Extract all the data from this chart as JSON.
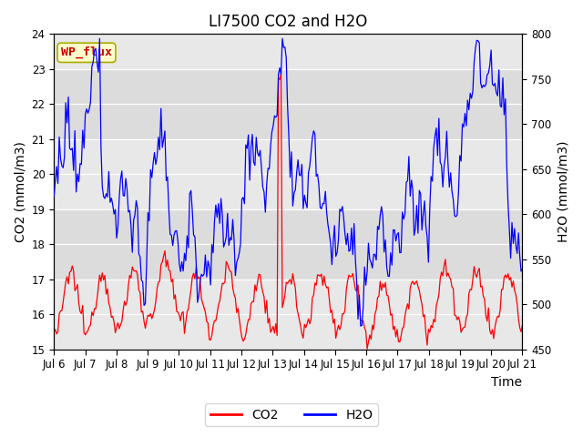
{
  "title": "LI7500 CO2 and H2O",
  "xlabel": "Time",
  "ylabel_left": "CO2 (mmol/m3)",
  "ylabel_right": "H2O (mmol/m3)",
  "ylim_left": [
    15.0,
    24.0
  ],
  "ylim_right": [
    450,
    800
  ],
  "xtick_labels": [
    "Jul 6",
    "Jul 7",
    "Jul 8",
    "Jul 9",
    "Jul 10",
    "Jul 11",
    "Jul 12",
    "Jul 13",
    "Jul 14",
    "Jul 15",
    "Jul 16",
    "Jul 17",
    "Jul 18",
    "Jul 19",
    "Jul 20",
    "Jul 21"
  ],
  "co2_color": "#FF0000",
  "h2o_color": "#0000FF",
  "bg_color": "#FFFFFF",
  "plot_bg_color": "#F2F2F2",
  "annotation_text": "WP_flux",
  "annotation_color": "#CC0000",
  "annotation_bg": "#FFFFCC",
  "annotation_border": "#AAAA00",
  "legend_co2": "CO2",
  "legend_h2o": "H2O",
  "title_fontsize": 12,
  "axis_label_fontsize": 10,
  "tick_fontsize": 8.5,
  "legend_fontsize": 10,
  "band_colors": [
    "#E8E8E8",
    "#DCDCDC",
    "#E8E8E8",
    "#DCDCDC",
    "#E8E8E8"
  ],
  "band_edges": [
    15.0,
    17.0,
    19.0,
    21.0,
    23.0,
    24.0
  ]
}
